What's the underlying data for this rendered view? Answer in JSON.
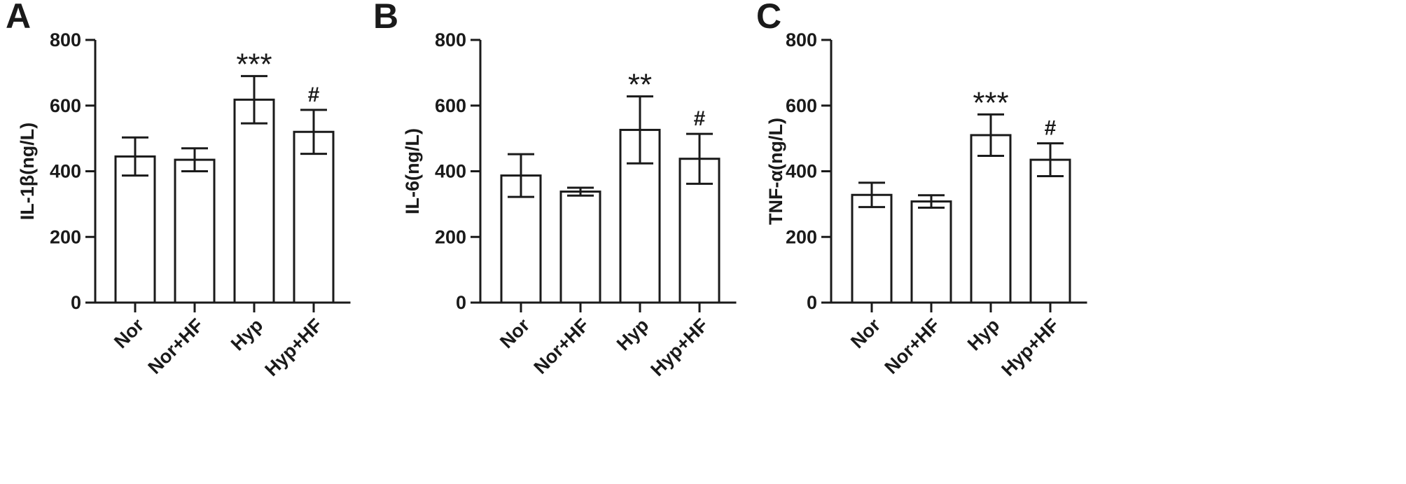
{
  "figure": {
    "panels": [
      {
        "label": "A"
      },
      {
        "label": "B"
      },
      {
        "label": "C"
      }
    ]
  },
  "chart_data": [
    {
      "type": "bar",
      "panel": "A",
      "title": "",
      "xlabel": "",
      "ylabel": "IL-1β(ng/L)",
      "ylim": [
        0,
        800
      ],
      "yticks": [
        0,
        200,
        400,
        600,
        800
      ],
      "categories": [
        "Nor",
        "Nor+HF",
        "Hyp",
        "Hyp+HF"
      ],
      "values": [
        445,
        435,
        618,
        520
      ],
      "errors": [
        58,
        35,
        72,
        67
      ],
      "annotations": [
        "",
        "",
        "***",
        "#"
      ],
      "grid": false,
      "legend": "none"
    },
    {
      "type": "bar",
      "panel": "B",
      "title": "",
      "xlabel": "",
      "ylabel": "IL-6(ng/L)",
      "ylim": [
        0,
        800
      ],
      "yticks": [
        0,
        200,
        400,
        600,
        800
      ],
      "categories": [
        "Nor",
        "Nor+HF",
        "Hyp",
        "Hyp+HF"
      ],
      "values": [
        387,
        338,
        526,
        438
      ],
      "errors": [
        65,
        12,
        102,
        76
      ],
      "annotations": [
        "",
        "",
        "**",
        "#"
      ],
      "grid": false,
      "legend": "none"
    },
    {
      "type": "bar",
      "panel": "C",
      "title": "",
      "xlabel": "",
      "ylabel": "TNF-α(ng/L)",
      "ylim": [
        0,
        800
      ],
      "yticks": [
        0,
        200,
        400,
        600,
        800
      ],
      "categories": [
        "Nor",
        "Nor+HF",
        "Hyp",
        "Hyp+HF"
      ],
      "values": [
        328,
        308,
        510,
        435
      ],
      "errors": [
        37,
        19,
        63,
        50
      ],
      "annotations": [
        "",
        "",
        "***",
        "#"
      ],
      "grid": false,
      "legend": "none"
    }
  ]
}
